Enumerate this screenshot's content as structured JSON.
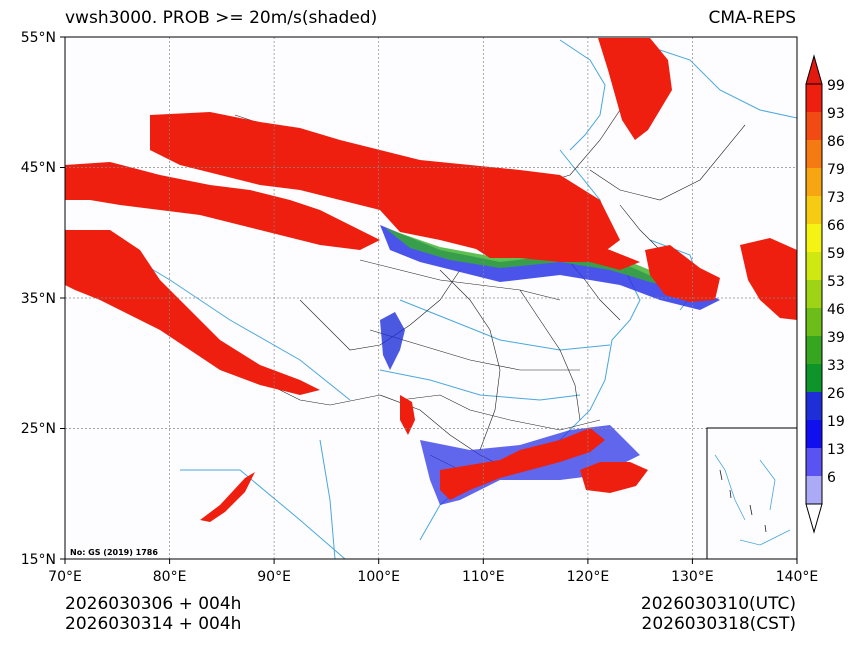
{
  "header": {
    "title": "vwsh3000. PROB >= 20m/s(shaded)",
    "model": "CMA-REPS"
  },
  "axes": {
    "lat_labels": [
      "55°N",
      "45°N",
      "35°N",
      "25°N",
      "15°N"
    ],
    "lon_labels": [
      "70°E",
      "80°E",
      "90°E",
      "100°E",
      "110°E",
      "120°E",
      "130°E",
      "140°E"
    ]
  },
  "map": {
    "lat_range": [
      15,
      55
    ],
    "lon_range": [
      70,
      140
    ],
    "approval_number": "No: GS (2019) 1786"
  },
  "colorbar": {
    "levels": [
      "99",
      "93",
      "86",
      "79",
      "73",
      "66",
      "59",
      "53",
      "46",
      "39",
      "33",
      "26",
      "19",
      "13",
      "6"
    ],
    "colors": [
      "#ee1f0f",
      "#f14a12",
      "#f57a12",
      "#f7a612",
      "#f6cc12",
      "#f4f312",
      "#cfe812",
      "#9fd316",
      "#6dbd1a",
      "#36a51f",
      "#0d952a",
      "#1e2fd8",
      "#1010ef",
      "#5a52f2",
      "#aaaaf6"
    ],
    "top_arrow_color": "#e3180f",
    "bottom_arrow_color": "#ffffff"
  },
  "footer": {
    "init_utc": "2026030306  +  004h",
    "init_cst": "2026030314  +  004h",
    "valid_utc": "2026030310(UTC)",
    "valid_cst": "2026030318(CST)"
  }
}
